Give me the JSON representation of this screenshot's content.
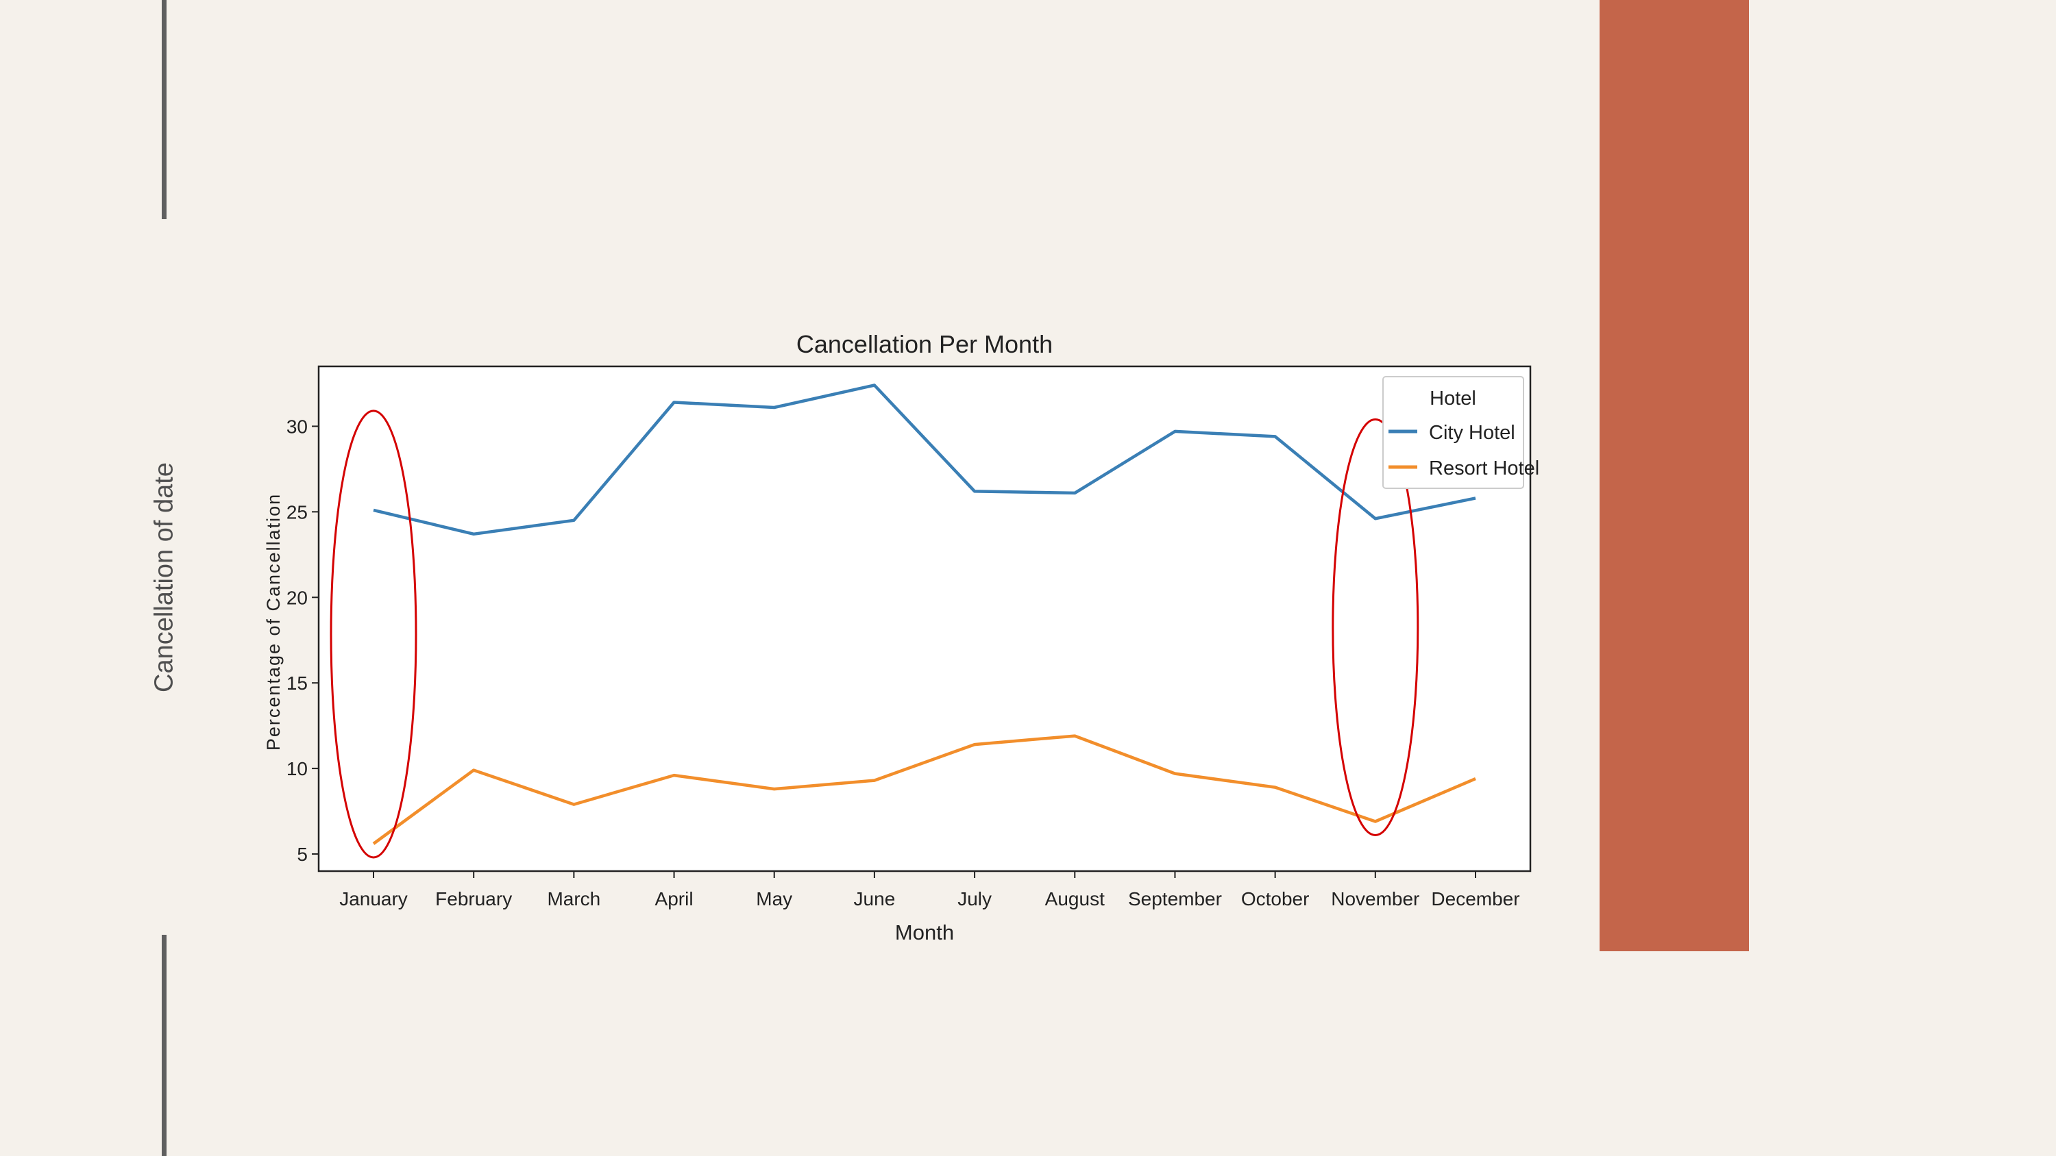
{
  "slide": {
    "label": "Cancellation of date",
    "colors": {
      "background": "#f5f1eb",
      "accent_block": "#c4654a",
      "accent_line": "#5f5f5f",
      "highlight": "#d40000"
    }
  },
  "chart_data": {
    "type": "line",
    "title": "Cancellation Per Month",
    "xlabel": "Month",
    "ylabel": "Percentage of Cancellation",
    "categories": [
      "January",
      "February",
      "March",
      "April",
      "May",
      "June",
      "July",
      "August",
      "September",
      "October",
      "November",
      "December"
    ],
    "series": [
      {
        "name": "City Hotel",
        "color": "#3a7fb5",
        "values": [
          25.1,
          23.7,
          24.5,
          31.4,
          31.1,
          32.4,
          26.2,
          26.1,
          29.7,
          29.4,
          24.6,
          25.8
        ]
      },
      {
        "name": "Resort Hotel",
        "color": "#f28e2b",
        "values": [
          5.6,
          9.9,
          7.9,
          9.6,
          8.8,
          9.3,
          11.4,
          11.9,
          9.7,
          8.9,
          6.9,
          9.4
        ]
      }
    ],
    "yticks": [
      5,
      10,
      15,
      20,
      25,
      30
    ],
    "ylim": [
      4.0,
      33.5
    ],
    "legend": {
      "title": "Hotel",
      "position": "top-right"
    },
    "highlights": [
      "January",
      "November"
    ]
  }
}
